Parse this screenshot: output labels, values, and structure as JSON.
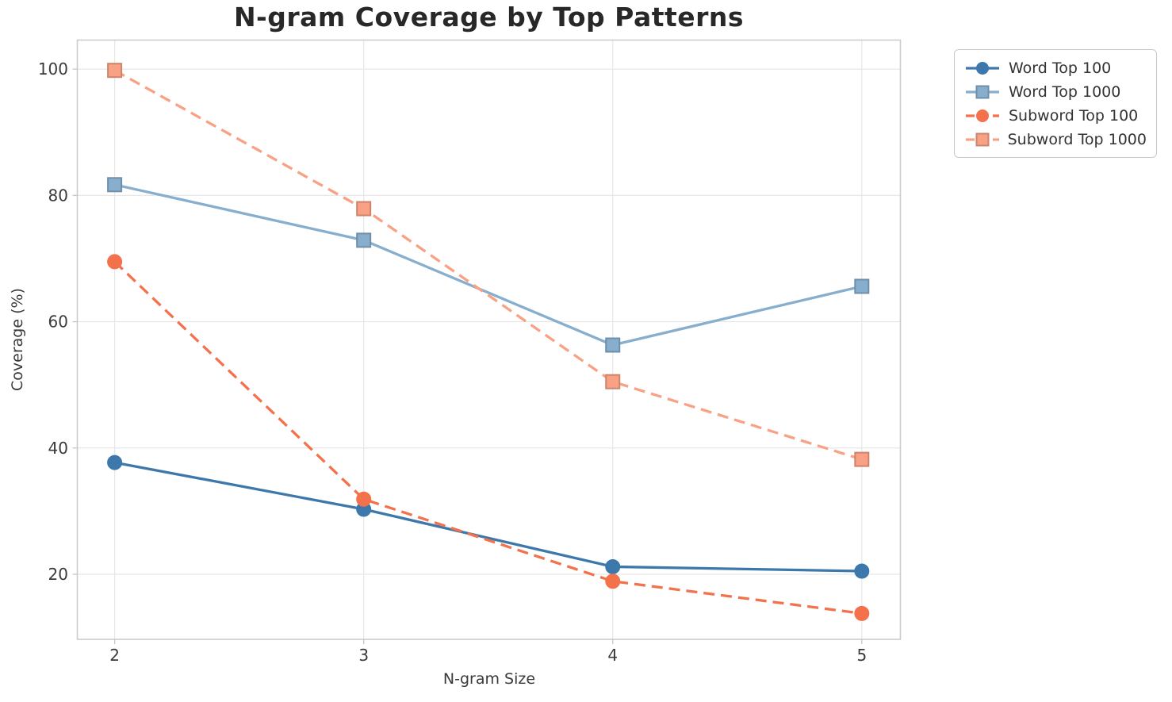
{
  "chart_data": {
    "type": "line",
    "title": "N-gram Coverage by Top Patterns",
    "xlabel": "N-gram Size",
    "ylabel": "Coverage (%)",
    "x": [
      2,
      3,
      4,
      5
    ],
    "xtick_labels": [
      "2",
      "3",
      "4",
      "5"
    ],
    "yticks": [
      20,
      40,
      60,
      80,
      100
    ],
    "xlim": [
      1.85,
      5.155
    ],
    "ylim": [
      9.7,
      104.6
    ],
    "grid": true,
    "legend_position": "outside-top-right",
    "series": [
      {
        "name": "Word Top 100",
        "values": [
          37.7,
          30.3,
          21.2,
          20.5
        ],
        "color": "#3c78ab",
        "line_style": "solid",
        "marker": "circle"
      },
      {
        "name": "Word Top 1000",
        "values": [
          81.7,
          72.9,
          56.3,
          65.6
        ],
        "color": "#87aecd",
        "line_style": "solid",
        "marker": "square"
      },
      {
        "name": "Subword Top 100",
        "values": [
          69.5,
          31.9,
          18.9,
          13.8
        ],
        "color": "#f3714b",
        "line_style": "dashed",
        "marker": "circle"
      },
      {
        "name": "Subword Top 1000",
        "values": [
          99.8,
          77.9,
          50.5,
          38.2
        ],
        "color": "#f9a184",
        "line_style": "dashed",
        "marker": "square"
      }
    ],
    "colors": {
      "grid": "#e7e7e7",
      "spine": "#cccccc",
      "tick": "#c5c5c5",
      "tick_label": "#3a3a3a",
      "title_text": "#282828",
      "background": "#ffffff"
    }
  }
}
